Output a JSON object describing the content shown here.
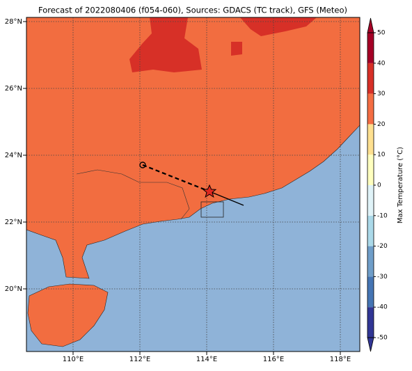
{
  "title": "Forecast of 2022080406 (f054-060), Sources: GDACS (TC track), GFS (Meteo)",
  "lon_ticks": [
    {
      "value": 110,
      "label": "110°E"
    },
    {
      "value": 112,
      "label": "112°E"
    },
    {
      "value": 114,
      "label": "114°E"
    },
    {
      "value": 116,
      "label": "116°E"
    },
    {
      "value": 118,
      "label": "118°E"
    }
  ],
  "lat_ticks": [
    {
      "value": 20,
      "label": "20°N"
    },
    {
      "value": 22,
      "label": "22°N"
    },
    {
      "value": 24,
      "label": "24°N"
    },
    {
      "value": 26,
      "label": "26°N"
    },
    {
      "value": 28,
      "label": "28°N"
    }
  ],
  "colorbar": {
    "label": "Max Temperature (°C)",
    "ticks": [
      -50,
      -40,
      -30,
      -20,
      -10,
      0,
      10,
      20,
      30,
      40,
      50
    ],
    "colors": [
      "#313695",
      "#4575b4",
      "#6f9ec9",
      "#abd9e9",
      "#e0f3f8",
      "#ffffbf",
      "#fee090",
      "#f46d43",
      "#d73027",
      "#a50026"
    ]
  }
}
